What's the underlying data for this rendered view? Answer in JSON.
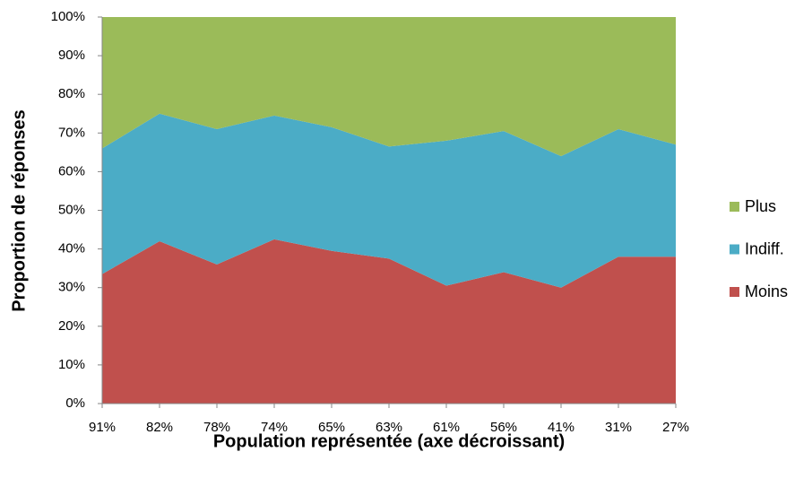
{
  "chart_data": {
    "type": "area",
    "stacked": "percent",
    "xlabel": "Population représentée (axe décroissant)",
    "ylabel": "Proportion de réponses",
    "categories": [
      "91%",
      "82%",
      "78%",
      "74%",
      "65%",
      "63%",
      "61%",
      "56%",
      "41%",
      "31%",
      "27%"
    ],
    "series": [
      {
        "name": "Moins",
        "color": "#c0504d",
        "values": [
          33.5,
          42,
          36,
          42.5,
          39.5,
          37.5,
          30.5,
          34,
          30,
          38,
          38
        ]
      },
      {
        "name": "Indiff.",
        "color": "#4bacc6",
        "values": [
          32.5,
          33,
          35,
          32,
          32,
          29,
          37.5,
          36.5,
          34,
          33,
          29
        ]
      },
      {
        "name": "Plus",
        "color": "#9bbb59",
        "values": [
          34,
          25,
          29,
          25.5,
          28.5,
          33.5,
          32,
          29.5,
          36,
          29,
          33
        ]
      }
    ],
    "ylim": [
      0,
      100
    ],
    "yticks": [
      {
        "value": 0,
        "label": "0%"
      },
      {
        "value": 10,
        "label": "10%"
      },
      {
        "value": 20,
        "label": "20%"
      },
      {
        "value": 30,
        "label": "30%"
      },
      {
        "value": 40,
        "label": "40%"
      },
      {
        "value": 50,
        "label": "50%"
      },
      {
        "value": 60,
        "label": "60%"
      },
      {
        "value": 70,
        "label": "70%"
      },
      {
        "value": 80,
        "label": "80%"
      },
      {
        "value": 90,
        "label": "90%"
      },
      {
        "value": 100,
        "label": "100%"
      }
    ],
    "grid": false,
    "legend": "right"
  }
}
